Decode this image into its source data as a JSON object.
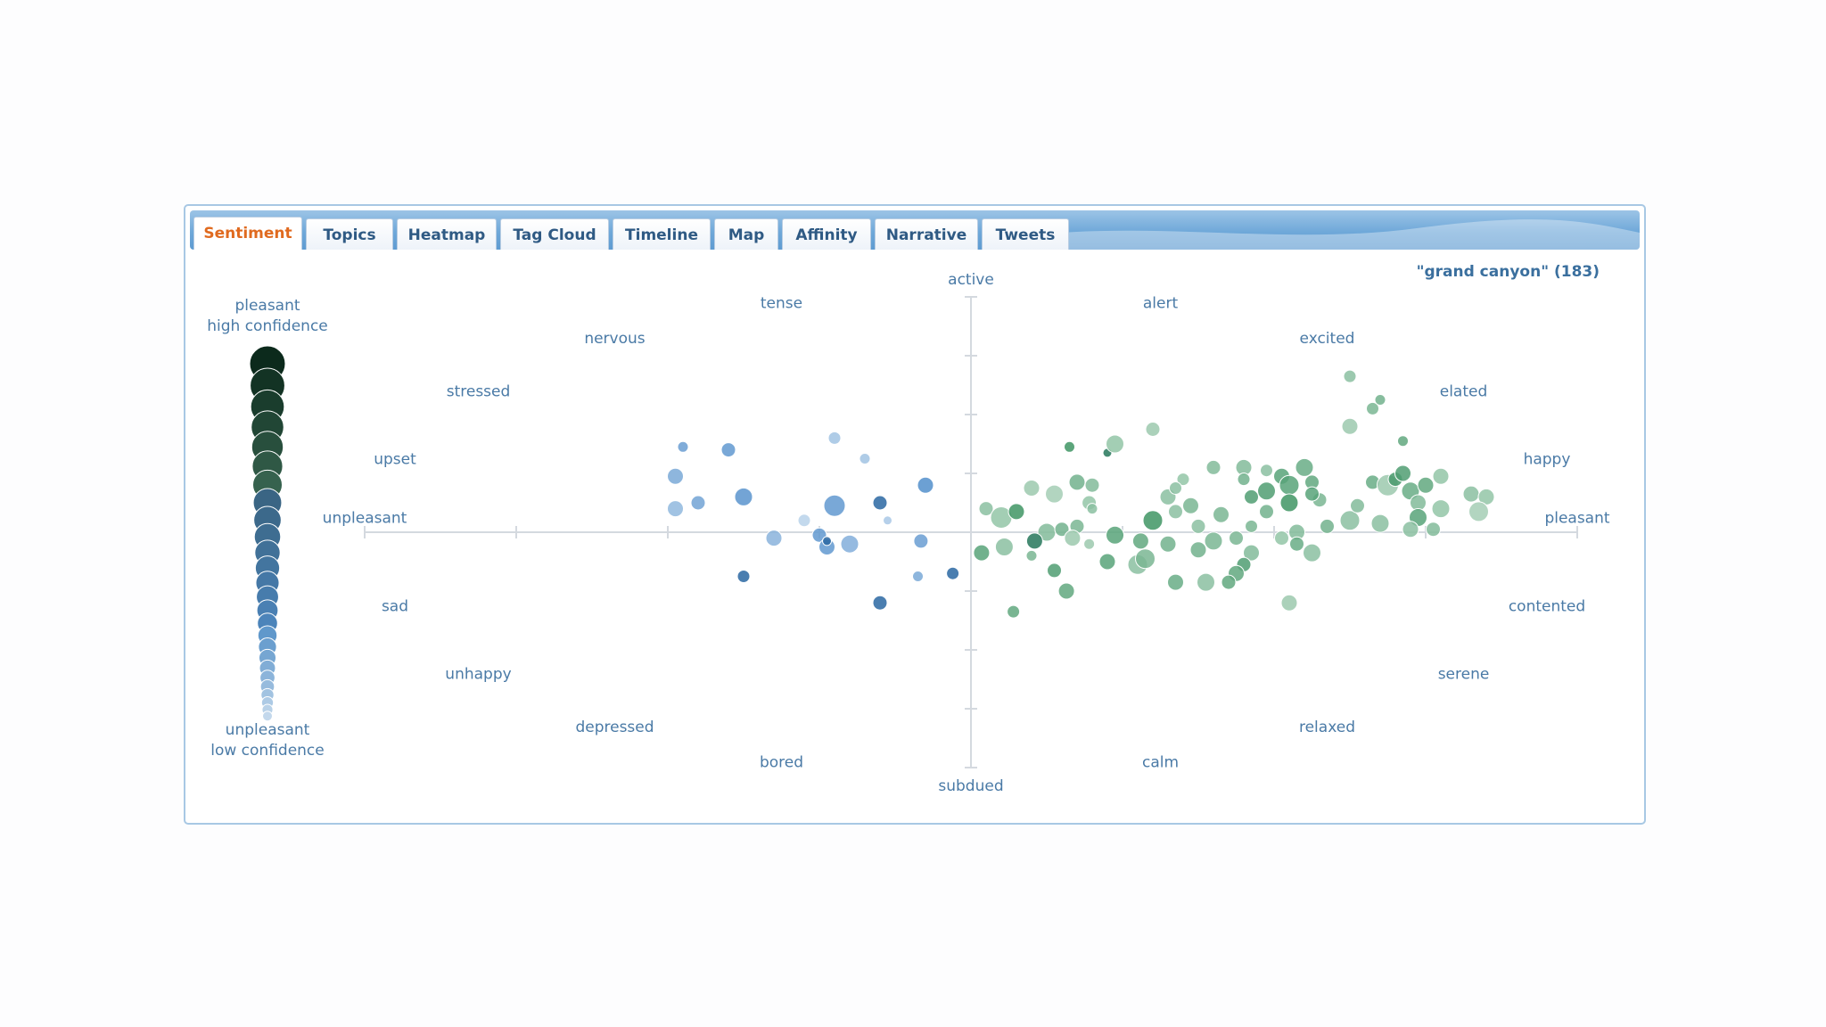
{
  "tabs": [
    {
      "label": "Sentiment",
      "active": true
    },
    {
      "label": "Topics",
      "active": false
    },
    {
      "label": "Heatmap",
      "active": false
    },
    {
      "label": "Tag Cloud",
      "active": false
    },
    {
      "label": "Timeline",
      "active": false
    },
    {
      "label": "Map",
      "active": false
    },
    {
      "label": "Affinity",
      "active": false
    },
    {
      "label": "Narrative",
      "active": false
    },
    {
      "label": "Tweets",
      "active": false
    }
  ],
  "query_label": "\"grand canyon\" (183)",
  "colors": {
    "active_tab_text": "#e06a1f",
    "tab_text": "#2f5a84",
    "label_text": "#4a7aa6",
    "pleasant_dot": "#2e8b57",
    "unpleasant_dot": "#3a7fc4"
  },
  "chart_data": {
    "type": "scatter",
    "x_axis": {
      "negative_label": "unpleasant",
      "positive_label": "pleasant",
      "range": [
        -4,
        4
      ]
    },
    "y_axis": {
      "negative_label": "subdued",
      "positive_label": "active",
      "range": [
        -4,
        4
      ]
    },
    "emotion_labels": [
      {
        "text": "active",
        "x": 0,
        "y": 4.3
      },
      {
        "text": "tense",
        "x": -1.25,
        "y": 3.9
      },
      {
        "text": "alert",
        "x": 1.25,
        "y": 3.9
      },
      {
        "text": "nervous",
        "x": -2.35,
        "y": 3.3
      },
      {
        "text": "excited",
        "x": 2.35,
        "y": 3.3
      },
      {
        "text": "stressed",
        "x": -3.25,
        "y": 2.4
      },
      {
        "text": "elated",
        "x": 3.25,
        "y": 2.4
      },
      {
        "text": "upset",
        "x": -3.8,
        "y": 1.25
      },
      {
        "text": "happy",
        "x": 3.8,
        "y": 1.25
      },
      {
        "text": "unpleasant",
        "x": -4,
        "y": 0.25
      },
      {
        "text": "pleasant",
        "x": 4,
        "y": 0.25
      },
      {
        "text": "sad",
        "x": -3.8,
        "y": -1.25
      },
      {
        "text": "contented",
        "x": 3.8,
        "y": -1.25
      },
      {
        "text": "unhappy",
        "x": -3.25,
        "y": -2.4
      },
      {
        "text": "serene",
        "x": 3.25,
        "y": -2.4
      },
      {
        "text": "depressed",
        "x": -2.35,
        "y": -3.3
      },
      {
        "text": "relaxed",
        "x": 2.35,
        "y": -3.3
      },
      {
        "text": "bored",
        "x": -1.25,
        "y": -3.9
      },
      {
        "text": "calm",
        "x": 1.25,
        "y": -3.9
      },
      {
        "text": "subdued",
        "x": 0,
        "y": -4.3
      }
    ],
    "legend": {
      "top_label_line1": "pleasant",
      "top_label_line2": "high confidence",
      "bottom_label_line1": "unpleasant",
      "bottom_label_line2": "low confidence"
    },
    "points": [
      [
        -1.9,
        1.45,
        6,
        "u",
        0.7
      ],
      [
        -1.6,
        1.4,
        8,
        "u",
        0.75
      ],
      [
        -0.9,
        1.6,
        7,
        "u",
        0.35
      ],
      [
        -0.7,
        1.25,
        6,
        "u",
        0.35
      ],
      [
        -1.95,
        0.95,
        9,
        "u",
        0.6
      ],
      [
        -1.95,
        0.4,
        9,
        "u",
        0.45
      ],
      [
        -1.8,
        0.5,
        8,
        "u",
        0.65
      ],
      [
        -1.5,
        0.6,
        10,
        "u",
        0.8
      ],
      [
        -1.1,
        0.2,
        7,
        "u",
        0.2
      ],
      [
        -0.9,
        0.45,
        12,
        "u",
        0.75
      ],
      [
        -0.6,
        0.5,
        8,
        "u",
        0.95
      ],
      [
        -0.55,
        0.2,
        5,
        "u",
        0.3
      ],
      [
        -0.3,
        0.8,
        9,
        "u",
        0.85
      ],
      [
        -1.3,
        -0.1,
        9,
        "u",
        0.5
      ],
      [
        -1.0,
        -0.05,
        8,
        "u",
        0.75
      ],
      [
        -0.95,
        -0.25,
        9,
        "u",
        0.75
      ],
      [
        -0.8,
        -0.2,
        10,
        "u",
        0.55
      ],
      [
        -0.95,
        -0.15,
        5,
        "u",
        1.0
      ],
      [
        -0.33,
        -0.15,
        8,
        "u",
        0.7
      ],
      [
        -1.5,
        -0.75,
        7,
        "u",
        1.0
      ],
      [
        -0.6,
        -1.2,
        8,
        "u",
        1.0
      ],
      [
        -0.35,
        -0.75,
        6,
        "u",
        0.6
      ],
      [
        -0.12,
        -0.7,
        7,
        "u",
        0.95
      ],
      [
        0.65,
        1.45,
        6,
        "p",
        0.9
      ],
      [
        0.9,
        1.35,
        5,
        "p",
        1.0
      ],
      [
        0.95,
        1.5,
        10,
        "p",
        0.4
      ],
      [
        1.2,
        1.75,
        8,
        "p",
        0.35
      ],
      [
        2.5,
        2.65,
        7,
        "p",
        0.45
      ],
      [
        2.65,
        2.1,
        7,
        "p",
        0.55
      ],
      [
        2.7,
        2.25,
        6,
        "p",
        0.6
      ],
      [
        2.5,
        1.8,
        9,
        "p",
        0.35
      ],
      [
        2.85,
        1.55,
        6,
        "p",
        0.7
      ],
      [
        0.1,
        0.4,
        8,
        "p",
        0.45
      ],
      [
        0.2,
        0.25,
        12,
        "p",
        0.4
      ],
      [
        0.3,
        0.35,
        9,
        "p",
        0.9
      ],
      [
        0.4,
        0.75,
        9,
        "p",
        0.35
      ],
      [
        0.55,
        0.65,
        10,
        "p",
        0.3
      ],
      [
        0.7,
        0.85,
        9,
        "p",
        0.6
      ],
      [
        0.8,
        0.8,
        8,
        "p",
        0.5
      ],
      [
        0.78,
        0.5,
        8,
        "p",
        0.4
      ],
      [
        0.8,
        0.4,
        6,
        "p",
        0.45
      ],
      [
        0.5,
        0.0,
        10,
        "p",
        0.5
      ],
      [
        0.6,
        0.05,
        8,
        "p",
        0.6
      ],
      [
        0.7,
        0.1,
        8,
        "p",
        0.55
      ],
      [
        0.67,
        -0.1,
        9,
        "p",
        0.35
      ],
      [
        0.78,
        -0.2,
        6,
        "p",
        0.35
      ],
      [
        0.95,
        -0.05,
        10,
        "p",
        0.75
      ],
      [
        1.2,
        0.2,
        11,
        "p",
        0.9
      ],
      [
        1.12,
        -0.15,
        9,
        "p",
        0.7
      ],
      [
        1.3,
        -0.2,
        9,
        "p",
        0.6
      ],
      [
        1.1,
        -0.55,
        11,
        "p",
        0.45
      ],
      [
        0.9,
        -0.5,
        9,
        "p",
        0.75
      ],
      [
        1.15,
        -0.45,
        11,
        "p",
        0.55
      ],
      [
        0.07,
        -0.35,
        9,
        "p",
        0.75
      ],
      [
        0.22,
        -0.25,
        10,
        "p",
        0.45
      ],
      [
        0.42,
        -0.15,
        9,
        "p",
        0.95
      ],
      [
        0.4,
        -0.4,
        6,
        "p",
        0.55
      ],
      [
        0.55,
        -0.65,
        8,
        "p",
        0.8
      ],
      [
        0.63,
        -1.0,
        9,
        "p",
        0.7
      ],
      [
        0.28,
        -1.35,
        7,
        "p",
        0.7
      ],
      [
        1.3,
        0.6,
        9,
        "p",
        0.45
      ],
      [
        1.4,
        0.9,
        7,
        "p",
        0.4
      ],
      [
        1.35,
        0.75,
        7,
        "p",
        0.45
      ],
      [
        1.45,
        0.45,
        9,
        "p",
        0.55
      ],
      [
        1.35,
        0.35,
        8,
        "p",
        0.45
      ],
      [
        1.6,
        1.1,
        8,
        "p",
        0.5
      ],
      [
        1.8,
        1.1,
        9,
        "p",
        0.5
      ],
      [
        1.8,
        0.9,
        7,
        "p",
        0.6
      ],
      [
        1.95,
        1.05,
        7,
        "p",
        0.45
      ],
      [
        1.85,
        0.6,
        8,
        "p",
        0.8
      ],
      [
        1.95,
        0.7,
        10,
        "p",
        0.8
      ],
      [
        2.05,
        0.95,
        9,
        "p",
        0.75
      ],
      [
        2.1,
        0.8,
        11,
        "p",
        0.75
      ],
      [
        2.2,
        1.1,
        10,
        "p",
        0.65
      ],
      [
        2.25,
        0.85,
        8,
        "p",
        0.7
      ],
      [
        2.3,
        0.55,
        8,
        "p",
        0.55
      ],
      [
        1.65,
        0.3,
        9,
        "p",
        0.55
      ],
      [
        1.5,
        0.1,
        8,
        "p",
        0.45
      ],
      [
        1.85,
        0.1,
        7,
        "p",
        0.55
      ],
      [
        1.95,
        0.35,
        8,
        "p",
        0.6
      ],
      [
        2.1,
        0.5,
        10,
        "p",
        0.9
      ],
      [
        2.15,
        0.0,
        9,
        "p",
        0.5
      ],
      [
        2.15,
        -0.2,
        8,
        "p",
        0.65
      ],
      [
        2.25,
        0.65,
        8,
        "p",
        0.75
      ],
      [
        1.6,
        -0.15,
        10,
        "p",
        0.55
      ],
      [
        1.5,
        -0.3,
        9,
        "p",
        0.6
      ],
      [
        1.75,
        -0.1,
        8,
        "p",
        0.55
      ],
      [
        1.85,
        -0.35,
        9,
        "p",
        0.5
      ],
      [
        1.8,
        -0.55,
        8,
        "p",
        0.8
      ],
      [
        1.75,
        -0.7,
        9,
        "p",
        0.7
      ],
      [
        2.05,
        -0.1,
        8,
        "p",
        0.4
      ],
      [
        1.35,
        -0.85,
        9,
        "p",
        0.65
      ],
      [
        1.55,
        -0.85,
        10,
        "p",
        0.45
      ],
      [
        1.7,
        -0.85,
        8,
        "p",
        0.7
      ],
      [
        2.25,
        -0.35,
        10,
        "p",
        0.45
      ],
      [
        2.1,
        -1.2,
        9,
        "p",
        0.35
      ],
      [
        2.5,
        0.2,
        11,
        "p",
        0.45
      ],
      [
        2.55,
        0.45,
        8,
        "p",
        0.5
      ],
      [
        2.65,
        0.85,
        8,
        "p",
        0.65
      ],
      [
        2.75,
        0.8,
        12,
        "p",
        0.35
      ],
      [
        2.9,
        0.7,
        10,
        "p",
        0.65
      ],
      [
        2.95,
        0.5,
        9,
        "p",
        0.5
      ],
      [
        2.95,
        0.25,
        10,
        "p",
        0.75
      ],
      [
        2.7,
        0.15,
        10,
        "p",
        0.45
      ],
      [
        2.8,
        0.9,
        8,
        "p",
        0.85
      ],
      [
        2.85,
        1.0,
        9,
        "p",
        0.8
      ],
      [
        3.0,
        0.8,
        9,
        "p",
        0.7
      ],
      [
        3.1,
        0.95,
        9,
        "p",
        0.4
      ],
      [
        3.1,
        0.4,
        10,
        "p",
        0.4
      ],
      [
        3.05,
        0.05,
        8,
        "p",
        0.5
      ],
      [
        2.9,
        0.05,
        9,
        "p",
        0.45
      ],
      [
        3.3,
        0.65,
        9,
        "p",
        0.45
      ],
      [
        3.4,
        0.6,
        9,
        "p",
        0.4
      ],
      [
        3.35,
        0.35,
        11,
        "p",
        0.3
      ],
      [
        2.35,
        0.1,
        8,
        "p",
        0.6
      ]
    ]
  }
}
